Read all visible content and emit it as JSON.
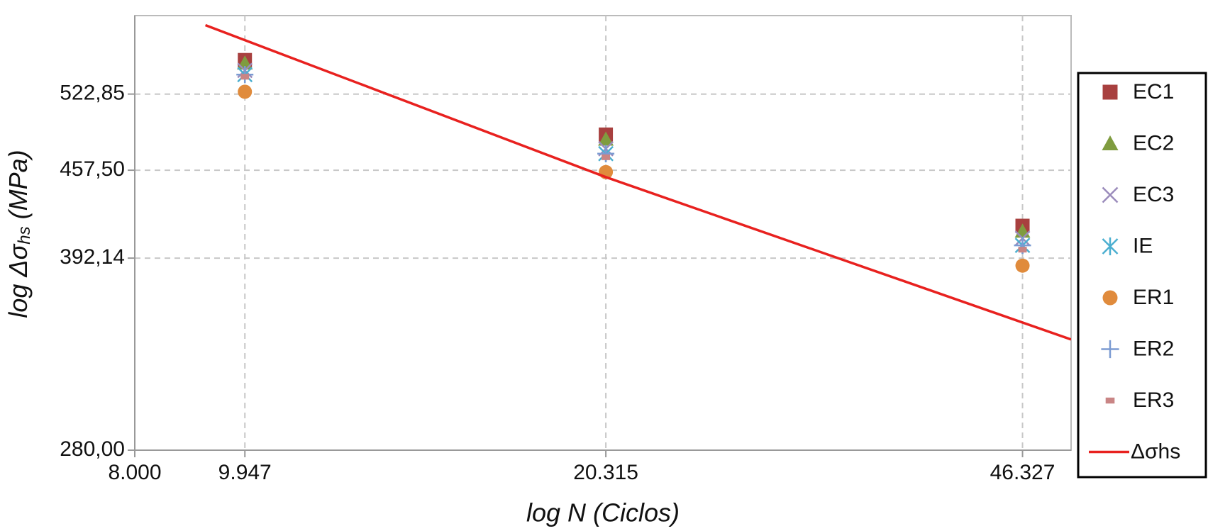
{
  "chart_data": {
    "type": "scatter",
    "xlabel": "log N (Ciclos)",
    "ylabel": [
      "log Δσ",
      "hs",
      " (MPa)"
    ],
    "xscale": "log",
    "yscale": "log",
    "xlim": [
      8000,
      51000
    ],
    "ylim": [
      280,
      600
    ],
    "xticks": [
      {
        "value": 8000,
        "label": "8.000"
      },
      {
        "value": 9947,
        "label": "9.947"
      },
      {
        "value": 20315,
        "label": "20.315"
      },
      {
        "value": 46327,
        "label": "46.327"
      }
    ],
    "yticks": [
      {
        "value": 280,
        "label": "280,00"
      },
      {
        "value": 392.14,
        "label": "392,14"
      },
      {
        "value": 457.5,
        "label": "457,50"
      },
      {
        "value": 522.85,
        "label": "522,85"
      }
    ],
    "grid": true,
    "legend": "right",
    "series": [
      {
        "name": "EC1",
        "color": "#a8403f",
        "marker": "square",
        "x": [
          9947,
          20315,
          46327
        ],
        "values": [
          555,
          487,
          415
        ]
      },
      {
        "name": "EC2",
        "color": "#7f9c3f",
        "marker": "triangle",
        "x": [
          9947,
          20315,
          46327
        ],
        "values": [
          552,
          483,
          411
        ]
      },
      {
        "name": "EC3",
        "color": "#9a8bbb",
        "marker": "x",
        "x": [
          9947,
          20315,
          46327
        ],
        "values": [
          545,
          475,
          406
        ]
      },
      {
        "name": "IE",
        "color": "#4bafd0",
        "marker": "asterisk",
        "x": [
          9947,
          20315,
          46327
        ],
        "values": [
          541,
          471,
          401
        ]
      },
      {
        "name": "ER1",
        "color": "#e08b3c",
        "marker": "circle",
        "x": [
          9947,
          20315,
          46327
        ],
        "values": [
          525,
          456,
          387
        ]
      },
      {
        "name": "ER2",
        "color": "#7b9bd2",
        "marker": "plus",
        "x": [
          9947,
          20315,
          46327
        ],
        "values": [
          541,
          471,
          401
        ]
      },
      {
        "name": "ER3",
        "color": "#c98585",
        "marker": "dash",
        "x": [
          9947,
          20315,
          46327
        ],
        "values": [
          539,
          468,
          398
        ]
      },
      {
        "name": "Δσhs",
        "color": "#e8211f",
        "type": "line",
        "x": [
          9200,
          20315,
          51000
        ],
        "values": [
          590,
          452,
          340
        ]
      }
    ]
  }
}
